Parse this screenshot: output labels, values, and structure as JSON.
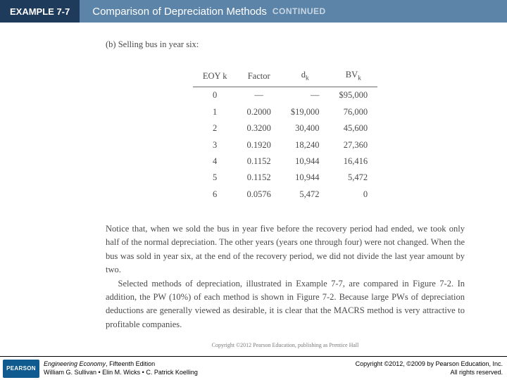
{
  "header": {
    "tag": "EXAMPLE 7-7",
    "title": "Comparison of Depreciation Methods",
    "continued": "CONTINUED"
  },
  "part_label": "(b) Selling bus in year six:",
  "table": {
    "headers": {
      "c0": "EOY k",
      "c1": "Factor",
      "c2_pre": "d",
      "c2_sub": "k",
      "c3_pre": "BV",
      "c3_sub": "k"
    },
    "rows": [
      {
        "k": "0",
        "factor": "—",
        "dk": "—",
        "bv": "$95,000"
      },
      {
        "k": "1",
        "factor": "0.2000",
        "dk": "$19,000",
        "bv": "76,000"
      },
      {
        "k": "2",
        "factor": "0.3200",
        "dk": "30,400",
        "bv": "45,600"
      },
      {
        "k": "3",
        "factor": "0.1920",
        "dk": "18,240",
        "bv": "27,360"
      },
      {
        "k": "4",
        "factor": "0.1152",
        "dk": "10,944",
        "bv": "16,416"
      },
      {
        "k": "5",
        "factor": "0.1152",
        "dk": "10,944",
        "bv": "5,472"
      },
      {
        "k": "6",
        "factor": "0.0576",
        "dk": "5,472",
        "bv": "0"
      }
    ]
  },
  "para1": "Notice that, when we sold the bus in year five before the recovery period had ended, we took only half of the normal depreciation. The other years (years one through four) were not changed. When the bus was sold in year six, at the end of the recovery period, we did not divide the last year amount by two.",
  "para2": "Selected methods of depreciation, illustrated in Example 7-7, are compared in Figure 7-2. In addition, the PW (10%) of each method is shown in Figure 7-2. Because large PWs of depreciation deductions are generally viewed as desirable, it is clear that the MACRS method is very attractive to profitable companies.",
  "tiny_copyright": "Copyright ©2012 Pearson Education, publishing as Prentice Hall",
  "footer": {
    "logo": "PEARSON",
    "book_title": "Engineering Economy",
    "edition": ", Fifteenth Edition",
    "authors": "William G. Sullivan • Elin M. Wicks • C. Patrick Koelling",
    "cr1": "Copyright ©2012, ©2009 by Pearson Education, Inc.",
    "cr2": "All rights reserved."
  }
}
